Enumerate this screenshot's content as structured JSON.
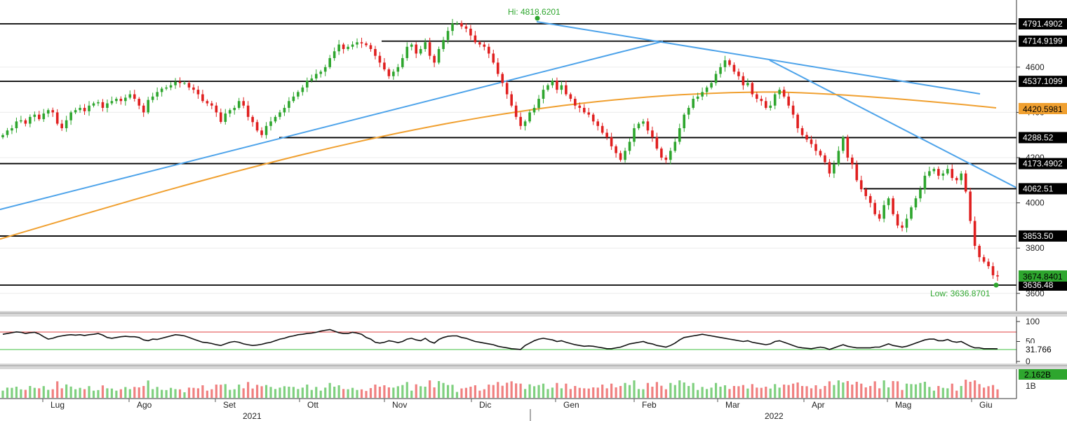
{
  "chart_data": {
    "type": "candlestick",
    "hi_label": "Hi: 4818.6201",
    "low_label": "Low: 3636.8701",
    "price_axis": {
      "ylim": [
        3570,
        4850
      ],
      "ticks": [
        "4600",
        "4400",
        "4200",
        "4000",
        "3800",
        "3600"
      ]
    },
    "horizontal_levels": [
      {
        "value": 4791.49,
        "label": "4791.4902"
      },
      {
        "value": 4714.92,
        "label": "4714.9199"
      },
      {
        "value": 4537.11,
        "label": "4537.1099"
      },
      {
        "value": 4288.52,
        "label": "4288.52"
      },
      {
        "value": 4173.49,
        "label": "4173.4902"
      },
      {
        "value": 4062.51,
        "label": "4062.51"
      },
      {
        "value": 3853.5,
        "label": "3853.50"
      },
      {
        "value": 3636.48,
        "label": "3636.48"
      }
    ],
    "last_price_label": "3674.8401",
    "ma_value_label": "4420.5981",
    "months": [
      "Lug",
      "Ago",
      "Set",
      "Ott",
      "Nov",
      "Dic",
      "Gen",
      "Feb",
      "Mar",
      "Apr",
      "Mag",
      "Giu"
    ],
    "years": [
      "2021",
      "2022"
    ],
    "closes": [
      4300,
      4320,
      4330,
      4360,
      4365,
      4350,
      4380,
      4390,
      4370,
      4395,
      4410,
      4400,
      4350,
      4330,
      4365,
      4400,
      4410,
      4420,
      4405,
      4430,
      4440,
      4445,
      4420,
      4440,
      4450,
      4460,
      4450,
      4465,
      4480,
      4460,
      4430,
      4400,
      4455,
      4470,
      4490,
      4505,
      4510,
      4520,
      4535,
      4530,
      4530,
      4510,
      4500,
      4480,
      4450,
      4440,
      4430,
      4400,
      4358,
      4395,
      4410,
      4420,
      4450,
      4430,
      4380,
      4357,
      4320,
      4300,
      4340,
      4360,
      4380,
      4400,
      4420,
      4450,
      4470,
      4490,
      4510,
      4540,
      4550,
      4570,
      4580,
      4600,
      4640,
      4670,
      4700,
      4680,
      4690,
      4700,
      4710,
      4705,
      4697,
      4680,
      4650,
      4620,
      4590,
      4560,
      4580,
      4600,
      4640,
      4690,
      4700,
      4660,
      4680,
      4710,
      4650,
      4620,
      4680,
      4720,
      4760,
      4793,
      4795,
      4780,
      4770,
      4740,
      4710,
      4700,
      4690,
      4660,
      4620,
      4570,
      4530,
      4480,
      4430,
      4380,
      4340,
      4360,
      4400,
      4420,
      4460,
      4500,
      4520,
      4540,
      4500,
      4520,
      4480,
      4460,
      4430,
      4420,
      4400,
      4390,
      4360,
      4340,
      4310,
      4290,
      4250,
      4220,
      4190,
      4230,
      4270,
      4330,
      4350,
      4360,
      4320,
      4290,
      4240,
      4200,
      4190,
      4230,
      4270,
      4330,
      4390,
      4420,
      4460,
      4470,
      4490,
      4510,
      4530,
      4570,
      4600,
      4630,
      4610,
      4580,
      4560,
      4520,
      4530,
      4480,
      4460,
      4450,
      4420,
      4430,
      4480,
      4500,
      4470,
      4430,
      4390,
      4330,
      4300,
      4280,
      4260,
      4230,
      4210,
      4180,
      4130,
      4170,
      4230,
      4290,
      4200,
      4170,
      4100,
      4060,
      4030,
      4000,
      3950,
      3930,
      3990,
      4020,
      3950,
      3900,
      3890,
      3930,
      3980,
      4020,
      4060,
      4120,
      4140,
      4150,
      4120,
      4130,
      4150,
      4110,
      4100,
      4130,
      4050,
      3920,
      3810,
      3760,
      3740,
      3720,
      3680,
      3674.84
    ],
    "rsi": {
      "ticks": [
        "100",
        "50",
        "0"
      ],
      "upper": 70,
      "lower": 30,
      "last_label": "31.766",
      "values": [
        68,
        70,
        72,
        74,
        73,
        70,
        72,
        73,
        69,
        62,
        56,
        58,
        62,
        64,
        66,
        67,
        66,
        67,
        65,
        67,
        68,
        70,
        66,
        60,
        58,
        60,
        62,
        63,
        62,
        62,
        60,
        54,
        52,
        56,
        55,
        58,
        61,
        64,
        67,
        66,
        64,
        60,
        56,
        52,
        48,
        47,
        45,
        42,
        40,
        44,
        48,
        50,
        48,
        44,
        42,
        40,
        41,
        43,
        46,
        48,
        52,
        56,
        58,
        62,
        64,
        67,
        68,
        70,
        71,
        73,
        76,
        78,
        80,
        76,
        72,
        70,
        70,
        73,
        71,
        68,
        60,
        56,
        48,
        46,
        48,
        52,
        50,
        47,
        50,
        56,
        58,
        54,
        52,
        58,
        50,
        46,
        55,
        60,
        63,
        64,
        64,
        60,
        58,
        54,
        50,
        48,
        46,
        44,
        42,
        38,
        36,
        34,
        32,
        31,
        30,
        40,
        46,
        52,
        56,
        58,
        56,
        54,
        50,
        52,
        48,
        45,
        42,
        40,
        38,
        39,
        38,
        36,
        34,
        32,
        32,
        34,
        36,
        40,
        44,
        46,
        48,
        50,
        46,
        44,
        40,
        38,
        36,
        40,
        46,
        54,
        60,
        62,
        64,
        66,
        68,
        66,
        64,
        62,
        60,
        58,
        56,
        54,
        52,
        50,
        52,
        48,
        46,
        44,
        42,
        44,
        50,
        52,
        48,
        44,
        40,
        36,
        34,
        33,
        32,
        34,
        36,
        34,
        30,
        34,
        38,
        42,
        38,
        36,
        34,
        34,
        34,
        34,
        36,
        36,
        40,
        44,
        40,
        38,
        36,
        38,
        42,
        46,
        50,
        54,
        56,
        56,
        52,
        52,
        55,
        50,
        48,
        50,
        44,
        38,
        34,
        34,
        32,
        32,
        32,
        31.77
      ]
    },
    "volume": {
      "ticks": [
        "1B"
      ],
      "last_label": "2.162B"
    },
    "ma_start": 3840,
    "ma_end": 4420
  }
}
